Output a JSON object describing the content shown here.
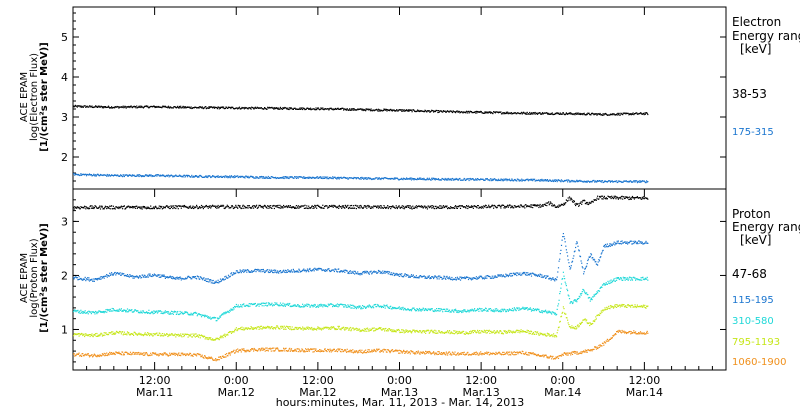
{
  "chart_data": [
    {
      "type": "scatter",
      "ylabel_lines": [
        "ACE EPAM",
        "log(Electron Flux)",
        "[1/(cm²s ster MeV)]"
      ],
      "legend_title": [
        "Electron",
        "Energy ranges"
      ],
      "legend_units": "[keV]",
      "ylim": [
        1.2,
        5.75
      ],
      "yticks": [
        2,
        3,
        4,
        5
      ],
      "series": [
        {
          "name": "38-53",
          "color": "#000000",
          "x": [
            0,
            6,
            12,
            18,
            24,
            30,
            36,
            42,
            48,
            54,
            60,
            66,
            72,
            78,
            84.5
          ],
          "values": [
            3.28,
            3.26,
            3.27,
            3.25,
            3.24,
            3.23,
            3.22,
            3.2,
            3.18,
            3.15,
            3.13,
            3.11,
            3.1,
            3.08,
            3.1
          ]
        },
        {
          "name": "175-315",
          "color": "#1a75cf",
          "x": [
            0,
            6,
            12,
            18,
            24,
            30,
            36,
            42,
            48,
            54,
            60,
            66,
            72,
            78,
            84.5
          ],
          "values": [
            1.58,
            1.55,
            1.55,
            1.53,
            1.52,
            1.5,
            1.5,
            1.48,
            1.47,
            1.46,
            1.45,
            1.44,
            1.42,
            1.4,
            1.4
          ]
        }
      ]
    },
    {
      "type": "scatter",
      "ylabel_lines": [
        "ACE EPAM",
        "log(Proton Flux)",
        "[1/(cm²s ster MeV)]"
      ],
      "legend_title": [
        "Proton",
        "Energy ranges"
      ],
      "legend_units": "[keV]",
      "ylim": [
        0.25,
        3.6
      ],
      "yticks": [
        1,
        2,
        3
      ],
      "xticks": [
        {
          "x": 12,
          "line1": "12:00",
          "line2": "Mar.11"
        },
        {
          "x": 24,
          "line1": "0:00",
          "line2": "Mar.12"
        },
        {
          "x": 36,
          "line1": "12:00",
          "line2": "Mar.12"
        },
        {
          "x": 48,
          "line1": "0:00",
          "line2": "Mar.13"
        },
        {
          "x": 60,
          "line1": "12:00",
          "line2": "Mar.13"
        },
        {
          "x": 72,
          "line1": "0:00",
          "line2": "Mar.14"
        },
        {
          "x": 84,
          "line1": "12:00",
          "line2": "Mar.14"
        }
      ],
      "xlim": [
        0,
        96
      ],
      "xlabel": "hours:minutes, Mar. 11, 2013 - Mar. 14, 2013",
      "series": [
        {
          "name": "47-68",
          "color": "#000000",
          "x": [
            0,
            10,
            20,
            30,
            40,
            50,
            60,
            66,
            69,
            70,
            71,
            72,
            73,
            74,
            75,
            76,
            77,
            78,
            84.5
          ],
          "values": [
            3.27,
            3.27,
            3.28,
            3.28,
            3.28,
            3.27,
            3.28,
            3.29,
            3.3,
            3.35,
            3.28,
            3.33,
            3.45,
            3.3,
            3.38,
            3.33,
            3.45,
            3.45,
            3.44
          ]
        },
        {
          "name": "115-195",
          "color": "#1a75cf",
          "x": [
            0,
            3,
            6,
            9,
            12,
            15,
            18,
            21,
            24,
            27,
            30,
            33,
            36,
            39,
            42,
            45,
            48,
            51,
            54,
            57,
            60,
            63,
            66,
            69,
            71,
            72,
            73,
            74,
            75,
            76,
            77,
            78,
            80,
            84.5
          ],
          "values": [
            1.97,
            1.93,
            2.05,
            1.98,
            2.02,
            1.95,
            1.98,
            1.88,
            2.08,
            2.1,
            2.08,
            2.1,
            2.12,
            2.1,
            2.05,
            2.08,
            2.02,
            1.98,
            1.97,
            1.95,
            1.97,
            2.0,
            2.05,
            2.0,
            1.92,
            2.8,
            2.1,
            2.65,
            2.05,
            2.4,
            2.2,
            2.55,
            2.62,
            2.62
          ]
        },
        {
          "name": "310-580",
          "color": "#1fd8d8",
          "x": [
            0,
            3,
            6,
            9,
            12,
            15,
            18,
            21,
            24,
            27,
            30,
            33,
            36,
            39,
            42,
            45,
            48,
            51,
            54,
            57,
            60,
            63,
            66,
            69,
            71,
            72,
            73,
            74,
            75,
            76,
            78,
            80,
            84.5
          ],
          "values": [
            1.35,
            1.32,
            1.38,
            1.35,
            1.33,
            1.32,
            1.3,
            1.2,
            1.45,
            1.47,
            1.48,
            1.45,
            1.45,
            1.46,
            1.42,
            1.45,
            1.4,
            1.38,
            1.37,
            1.35,
            1.38,
            1.36,
            1.4,
            1.35,
            1.3,
            2.05,
            1.5,
            1.55,
            1.75,
            1.55,
            1.85,
            1.95,
            1.95
          ]
        },
        {
          "name": "795-1193",
          "color": "#c6e61a",
          "x": [
            0,
            3,
            6,
            9,
            12,
            15,
            18,
            21,
            24,
            27,
            30,
            33,
            36,
            39,
            42,
            45,
            48,
            51,
            54,
            57,
            60,
            63,
            66,
            69,
            71,
            72,
            73,
            74,
            75,
            76,
            78,
            80,
            84.5
          ],
          "values": [
            0.92,
            0.9,
            0.95,
            0.93,
            0.92,
            0.9,
            0.9,
            0.82,
            1.02,
            1.04,
            1.05,
            1.03,
            1.03,
            1.04,
            1.0,
            1.02,
            0.98,
            0.97,
            0.97,
            0.95,
            0.97,
            0.96,
            0.98,
            0.92,
            0.9,
            1.4,
            1.05,
            1.05,
            1.2,
            1.1,
            1.4,
            1.45,
            1.43
          ]
        },
        {
          "name": "1060-1900",
          "color": "#f0901c",
          "x": [
            0,
            3,
            6,
            9,
            12,
            15,
            18,
            21,
            24,
            27,
            30,
            33,
            36,
            39,
            42,
            45,
            48,
            51,
            54,
            57,
            60,
            63,
            66,
            69,
            71,
            72,
            74,
            76,
            78,
            80,
            84.5
          ],
          "values": [
            0.55,
            0.53,
            0.57,
            0.56,
            0.55,
            0.55,
            0.54,
            0.45,
            0.62,
            0.64,
            0.64,
            0.63,
            0.62,
            0.63,
            0.6,
            0.62,
            0.6,
            0.58,
            0.57,
            0.56,
            0.57,
            0.56,
            0.58,
            0.52,
            0.48,
            0.55,
            0.58,
            0.62,
            0.75,
            0.97,
            0.95
          ]
        }
      ]
    }
  ]
}
